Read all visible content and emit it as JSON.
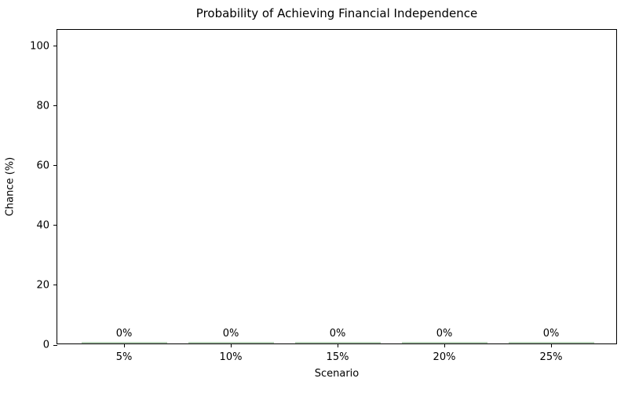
{
  "chart_data": {
    "type": "bar",
    "title": "Probability of Achieving Financial Independence",
    "xlabel": "Scenario",
    "ylabel": "Chance (%)",
    "categories": [
      "5%",
      "10%",
      "15%",
      "20%",
      "25%"
    ],
    "values": [
      0,
      0,
      0,
      0,
      0
    ],
    "bar_labels": [
      "0%",
      "0%",
      "0%",
      "0%",
      "0%"
    ],
    "yticks": [
      0,
      20,
      40,
      60,
      80,
      100
    ],
    "ylim": [
      0,
      105.5
    ],
    "bar_color": "#b9d2b9",
    "grid": "off",
    "legend": "none"
  }
}
